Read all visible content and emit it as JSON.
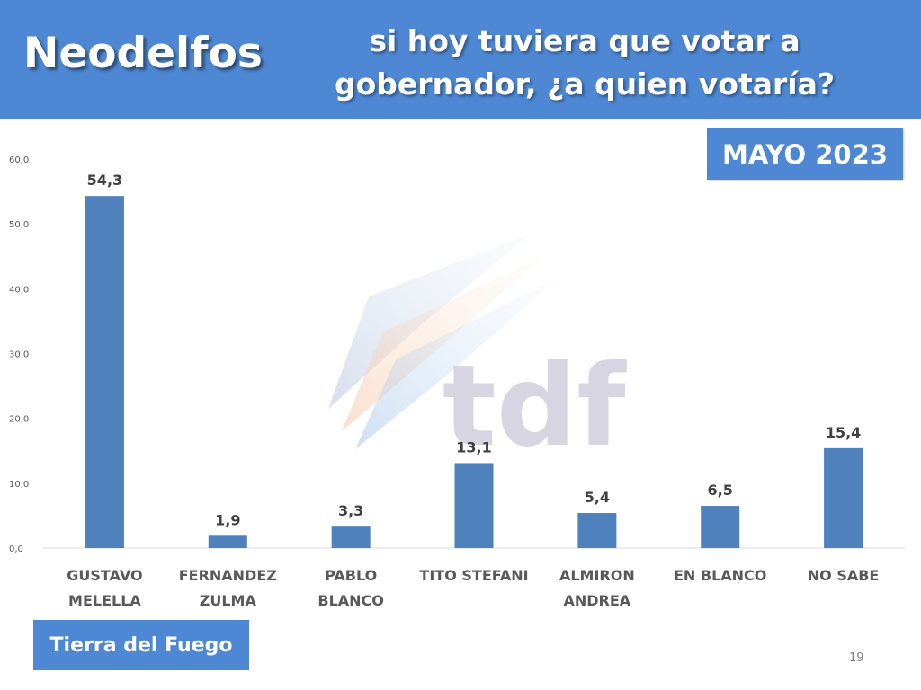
{
  "header": {
    "brand": "Neodelfos",
    "question_line1": "si hoy tuviera que votar a",
    "question_line2": "gobernador, ¿a quien votaría?"
  },
  "date_badge": "MAYO 2023",
  "region_badge": "Tierra del Fuego",
  "page_number": "19",
  "watermark": {
    "text": "tdf"
  },
  "colors": {
    "header": "#4e88d4",
    "bar": "#4f81bd",
    "axis": "#d9d9d9"
  },
  "chart_data": {
    "type": "bar",
    "categories": [
      [
        "GUSTAVO",
        "MELELLA"
      ],
      [
        "FERNANDEZ",
        "ZULMA"
      ],
      [
        "PABLO",
        "BLANCO"
      ],
      [
        "TITO STEFANI"
      ],
      [
        "ALMIRON",
        "ANDREA"
      ],
      [
        "EN BLANCO"
      ],
      [
        "NO SABE"
      ]
    ],
    "values": [
      54.3,
      1.9,
      3.3,
      13.1,
      5.4,
      6.5,
      15.4
    ],
    "value_labels": [
      "54,3",
      "1,9",
      "3,3",
      "13,1",
      "5,4",
      "6,5",
      "15,4"
    ],
    "yticks": [
      "0,0",
      "10,0",
      "20,0",
      "30,0",
      "40,0",
      "50,0",
      "60,0"
    ],
    "ylim": [
      0,
      60
    ],
    "grid": false,
    "legend": "none"
  }
}
